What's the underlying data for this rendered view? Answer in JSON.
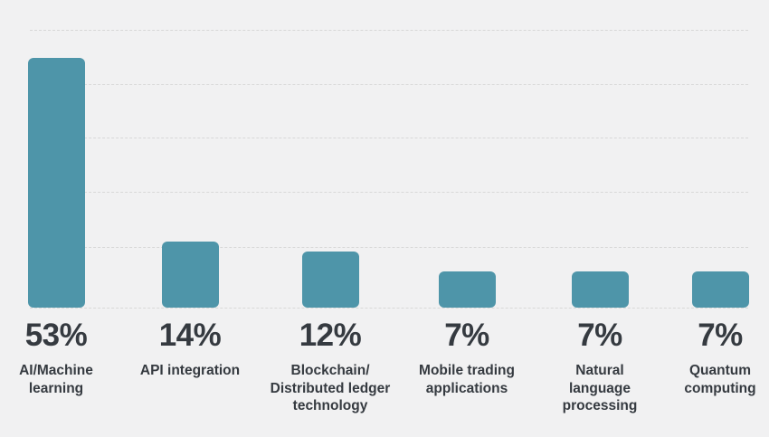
{
  "chart_data": {
    "type": "bar",
    "categories": [
      "AI/Machine learning",
      "API integration",
      "Blockchain/ Distributed ledger technology",
      "Mobile trading applications",
      "Natural language processing",
      "Quantum computing"
    ],
    "values": [
      53,
      14,
      12,
      7,
      7,
      7
    ],
    "value_labels": [
      "53%",
      "14%",
      "12%",
      "7%",
      "7%",
      "7%"
    ],
    "title": "",
    "xlabel": "",
    "ylabel": "",
    "ylim": [
      0,
      60
    ],
    "grid": "horizontal dashed gridlines, no axis tick labels",
    "legend_position": "none",
    "colors": {
      "bar": "#4e95a9",
      "background": "#f1f1f2",
      "text": "#353a40",
      "gridline": "#d8d8d8"
    }
  },
  "labels": [
    {
      "lines": [
        "AI/Machine",
        "learning"
      ]
    },
    {
      "lines": [
        "API integration"
      ]
    },
    {
      "lines": [
        "Blockchain/",
        "Distributed ledger",
        "technology"
      ]
    },
    {
      "lines": [
        "Mobile trading",
        "applications"
      ]
    },
    {
      "lines": [
        "Natural",
        "language",
        "processing"
      ]
    },
    {
      "lines": [
        "Quantum",
        "computing"
      ]
    }
  ]
}
